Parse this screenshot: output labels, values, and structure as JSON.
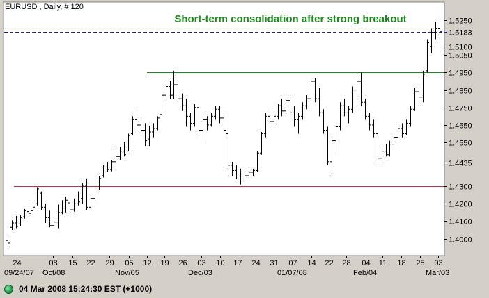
{
  "chart_data": {
    "type": "ohlc",
    "symbol_label": "EURUSD , Daily, # 120",
    "title": "Short-term consolidation after strong breakout",
    "title_color": "#1a8a1a",
    "background": "#ffffff",
    "frame_background": "#d4d0c8",
    "bar_color": "#000000",
    "ylim": [
      1.3935,
      1.5305
    ],
    "y_ticks": [
      {
        "value": 1.525,
        "label": "1.5250"
      },
      {
        "value": 1.51,
        "label": "1.5100"
      },
      {
        "value": 1.505,
        "label": "1.5050"
      },
      {
        "value": 1.495,
        "label": "1.4950"
      },
      {
        "value": 1.485,
        "label": "1.4850"
      },
      {
        "value": 1.475,
        "label": "1.4750"
      },
      {
        "value": 1.465,
        "label": "1.4650"
      },
      {
        "value": 1.455,
        "label": "1.4550"
      },
      {
        "value": 1.4435,
        "label": "1.4435"
      },
      {
        "value": 1.43,
        "label": "1.4300"
      },
      {
        "value": 1.42,
        "label": "1.4200"
      },
      {
        "value": 1.41,
        "label": "1.4100"
      },
      {
        "value": 1.4,
        "label": "1.4000"
      }
    ],
    "x_ticks_top": [
      "24",
      "08",
      "15",
      "22",
      "29",
      "05",
      "12",
      "19",
      "26",
      "03",
      "10",
      "17",
      "24",
      "31",
      "07",
      "14",
      "22",
      "28",
      "04",
      "11",
      "18",
      "25",
      "03"
    ],
    "x_ticks_bottom": [
      "09/24/07",
      "Oct/08",
      "Nov/05",
      "Dec/03",
      "01/07/08",
      "Feb/04",
      "Mar/03"
    ],
    "lines": [
      {
        "name": "current-price",
        "value": 1.5183,
        "label": "1.5183",
        "color": "#1c1cc8",
        "style": "dashed",
        "span": "full"
      },
      {
        "name": "resistance",
        "value": 1.495,
        "color": "#1a8a1a",
        "style": "solid",
        "span": "from-nov-12"
      },
      {
        "name": "support",
        "value": 1.43,
        "color": "#c0304a",
        "style": "solid",
        "span": "from-sep-27"
      }
    ],
    "bars": [
      [
        1.399,
        1.4015,
        1.3955,
        1.3975
      ],
      [
        1.4065,
        1.4105,
        1.405,
        1.409
      ],
      [
        1.409,
        1.413,
        1.406,
        1.407
      ],
      [
        1.4085,
        1.4135,
        1.407,
        1.412
      ],
      [
        1.4125,
        1.417,
        1.4115,
        1.416
      ],
      [
        1.4155,
        1.4175,
        1.4135,
        1.4145
      ],
      [
        1.416,
        1.4195,
        1.4145,
        1.418
      ],
      [
        1.42,
        1.4295,
        1.419,
        1.4285
      ],
      [
        1.426,
        1.427,
        1.4165,
        1.418
      ],
      [
        1.418,
        1.42,
        1.409,
        1.412
      ],
      [
        1.412,
        1.416,
        1.4065,
        1.4075
      ],
      [
        1.4075,
        1.412,
        1.404,
        1.4095
      ],
      [
        1.4095,
        1.4195,
        1.406,
        1.415
      ],
      [
        1.415,
        1.422,
        1.414,
        1.4175
      ],
      [
        1.4175,
        1.424,
        1.415,
        1.422
      ],
      [
        1.4205,
        1.422,
        1.413,
        1.4165
      ],
      [
        1.4165,
        1.423,
        1.4155,
        1.42
      ],
      [
        1.42,
        1.427,
        1.419,
        1.421
      ],
      [
        1.423,
        1.432,
        1.42,
        1.43
      ],
      [
        1.43,
        1.4345,
        1.4165,
        1.418
      ],
      [
        1.418,
        1.425,
        1.417,
        1.423
      ],
      [
        1.423,
        1.431,
        1.422,
        1.429
      ],
      [
        1.429,
        1.436,
        1.428,
        1.4345
      ],
      [
        1.436,
        1.442,
        1.435,
        1.441
      ],
      [
        1.441,
        1.444,
        1.438,
        1.4395
      ],
      [
        1.4395,
        1.445,
        1.4385,
        1.444
      ],
      [
        1.444,
        1.451,
        1.44,
        1.447
      ],
      [
        1.447,
        1.4525,
        1.445,
        1.45
      ],
      [
        1.45,
        1.4555,
        1.447,
        1.448
      ],
      [
        1.4525,
        1.46,
        1.45,
        1.459
      ],
      [
        1.46,
        1.47,
        1.459,
        1.468
      ],
      [
        1.468,
        1.473,
        1.462,
        1.465
      ],
      [
        1.465,
        1.468,
        1.46,
        1.462
      ],
      [
        1.462,
        1.466,
        1.453,
        1.456
      ],
      [
        1.457,
        1.4645,
        1.453,
        1.461
      ],
      [
        1.461,
        1.466,
        1.458,
        1.463
      ],
      [
        1.463,
        1.47,
        1.462,
        1.469
      ],
      [
        1.471,
        1.483,
        1.47,
        1.482
      ],
      [
        1.482,
        1.489,
        1.478,
        1.487
      ],
      [
        1.487,
        1.49,
        1.48,
        1.482
      ],
      [
        1.482,
        1.496,
        1.48,
        1.488
      ],
      [
        1.488,
        1.491,
        1.478,
        1.48
      ],
      [
        1.48,
        1.483,
        1.473,
        1.476
      ],
      [
        1.476,
        1.48,
        1.464,
        1.47
      ],
      [
        1.47,
        1.472,
        1.462,
        1.466
      ],
      [
        1.466,
        1.477,
        1.464,
        1.475
      ],
      [
        1.475,
        1.476,
        1.46,
        1.462
      ],
      [
        1.462,
        1.47,
        1.456,
        1.468
      ],
      [
        1.468,
        1.47,
        1.462,
        1.465
      ],
      [
        1.465,
        1.472,
        1.464,
        1.47
      ],
      [
        1.47,
        1.476,
        1.468,
        1.474
      ],
      [
        1.474,
        1.476,
        1.466,
        1.469
      ],
      [
        1.469,
        1.472,
        1.46,
        1.462
      ],
      [
        1.46,
        1.462,
        1.44,
        1.442
      ],
      [
        1.442,
        1.444,
        1.436,
        1.439
      ],
      [
        1.439,
        1.442,
        1.434,
        1.437
      ],
      [
        1.437,
        1.44,
        1.431,
        1.433
      ],
      [
        1.433,
        1.438,
        1.432,
        1.436
      ],
      [
        1.436,
        1.44,
        1.435,
        1.438
      ],
      [
        1.438,
        1.44,
        1.436,
        1.439
      ],
      [
        1.439,
        1.45,
        1.438,
        1.449
      ],
      [
        1.449,
        1.461,
        1.448,
        1.46
      ],
      [
        1.46,
        1.472,
        1.458,
        1.47
      ],
      [
        1.47,
        1.474,
        1.464,
        1.467
      ],
      [
        1.467,
        1.472,
        1.465,
        1.47
      ],
      [
        1.47,
        1.477,
        1.468,
        1.476
      ],
      [
        1.476,
        1.48,
        1.47,
        1.473
      ],
      [
        1.473,
        1.482,
        1.47,
        1.479
      ],
      [
        1.479,
        1.482,
        1.47,
        1.472
      ],
      [
        1.472,
        1.476,
        1.464,
        1.468
      ],
      [
        1.468,
        1.472,
        1.46,
        1.47
      ],
      [
        1.47,
        1.478,
        1.468,
        1.476
      ],
      [
        1.476,
        1.482,
        1.474,
        1.48
      ],
      [
        1.48,
        1.492,
        1.478,
        1.49
      ],
      [
        1.49,
        1.492,
        1.478,
        1.48
      ],
      [
        1.48,
        1.486,
        1.47,
        1.472
      ],
      [
        1.472,
        1.474,
        1.46,
        1.462
      ],
      [
        1.462,
        1.464,
        1.442,
        1.444
      ],
      [
        1.444,
        1.46,
        1.436,
        1.456
      ],
      [
        1.456,
        1.466,
        1.45,
        1.464
      ],
      [
        1.464,
        1.478,
        1.462,
        1.476
      ],
      [
        1.476,
        1.48,
        1.47,
        1.472
      ],
      [
        1.472,
        1.476,
        1.466,
        1.474
      ],
      [
        1.474,
        1.487,
        1.472,
        1.485
      ],
      [
        1.485,
        1.494,
        1.482,
        1.49
      ],
      [
        1.49,
        1.495,
        1.476,
        1.478
      ],
      [
        1.478,
        1.48,
        1.468,
        1.47
      ],
      [
        1.47,
        1.472,
        1.462,
        1.465
      ],
      [
        1.465,
        1.468,
        1.458,
        1.46
      ],
      [
        1.46,
        1.462,
        1.444,
        1.446
      ],
      [
        1.446,
        1.452,
        1.444,
        1.45
      ],
      [
        1.45,
        1.454,
        1.447,
        1.448
      ],
      [
        1.448,
        1.456,
        1.447,
        1.454
      ],
      [
        1.454,
        1.46,
        1.452,
        1.458
      ],
      [
        1.458,
        1.465,
        1.456,
        1.463
      ],
      [
        1.463,
        1.466,
        1.458,
        1.46
      ],
      [
        1.46,
        1.468,
        1.459,
        1.466
      ],
      [
        1.466,
        1.476,
        1.464,
        1.474
      ],
      [
        1.474,
        1.486,
        1.473,
        1.484
      ],
      [
        1.484,
        1.487,
        1.479,
        1.481
      ],
      [
        1.481,
        1.496,
        1.478,
        1.494
      ],
      [
        1.496,
        1.514,
        1.495,
        1.512
      ],
      [
        1.51,
        1.52,
        1.506,
        1.518
      ],
      [
        1.518,
        1.524,
        1.514,
        1.52
      ],
      [
        1.52,
        1.527,
        1.515,
        1.5183
      ]
    ]
  },
  "status": {
    "text": "04 Mar 2008 15:24:30  EST (+1000)"
  }
}
